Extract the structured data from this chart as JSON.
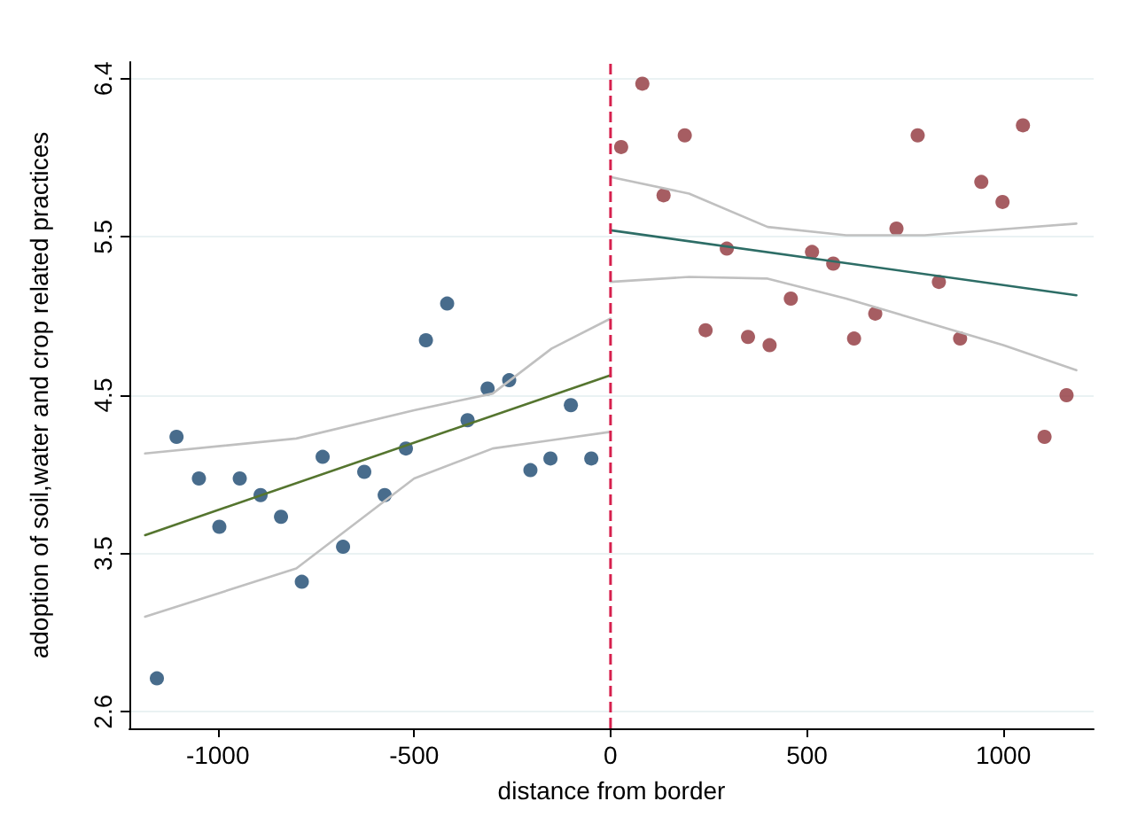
{
  "chart_data": {
    "type": "scatter",
    "xlabel": "distance from border",
    "ylabel": "adoption of soil,water and crop related practices",
    "xlim": [
      -1225,
      1230
    ],
    "xticks": [
      -1000,
      -500,
      0,
      500,
      1000
    ],
    "ylim": [
      2.5,
      6.5
    ],
    "yticks": [
      2.6,
      {
        "value": 3.55,
        "label": "3.5"
      },
      4.5,
      {
        "value": 5.45,
        "label": "5.5"
      },
      6.4
    ],
    "grid": "y",
    "ref_lines": [
      {
        "axis": "x",
        "value": 0,
        "color": "#d6204d",
        "line_style": "dashed"
      }
    ],
    "series": [
      {
        "marker": "circle",
        "color": "#1a476f",
        "x": [
          -1155,
          -1105,
          -1048,
          -996,
          -944,
          -891,
          -839,
          -786,
          -733,
          -681,
          -627,
          -575,
          -521,
          -470,
          -416,
          -364,
          -313,
          -258,
          -204,
          -153,
          -101,
          -49
        ],
        "values": [
          2.8,
          4.25,
          4.0,
          3.71,
          4.0,
          3.9,
          3.77,
          3.38,
          4.13,
          3.59,
          4.04,
          3.9,
          4.18,
          4.83,
          5.05,
          4.35,
          4.54,
          4.59,
          4.05,
          4.12,
          4.44,
          4.12
        ]
      },
      {
        "marker": "circle",
        "color": "#90353b",
        "x": [
          27,
          81,
          135,
          189,
          242,
          296,
          350,
          405,
          459,
          513,
          567,
          620,
          674,
          728,
          782,
          836,
          890,
          944,
          998,
          1050,
          1105,
          1161
        ],
        "values": [
          5.99,
          6.37,
          5.7,
          6.06,
          4.89,
          5.38,
          4.85,
          4.8,
          5.08,
          5.36,
          5.29,
          4.84,
          4.99,
          5.5,
          6.06,
          5.18,
          4.84,
          5.78,
          5.66,
          6.12,
          4.25,
          4.5
        ]
      },
      {
        "type": "line",
        "marker": "none",
        "line_style": "solid",
        "color": "#55752f",
        "x": [
          -1185,
          0
        ],
        "values": [
          3.66,
          4.62
        ]
      },
      {
        "type": "line",
        "marker": "none",
        "line_style": "solid",
        "color": "#c0c0c0",
        "x": [
          -1185,
          -800,
          -500,
          -300,
          -150,
          0
        ],
        "values": [
          4.15,
          4.24,
          4.41,
          4.51,
          4.78,
          4.96
        ]
      },
      {
        "type": "line",
        "marker": "none",
        "line_style": "solid",
        "color": "#c0c0c0",
        "x": [
          -1185,
          -800,
          -500,
          -300,
          -150,
          0
        ],
        "values": [
          3.17,
          3.46,
          4.0,
          4.18,
          4.23,
          4.28
        ]
      },
      {
        "type": "line",
        "marker": "none",
        "line_style": "solid",
        "color": "#2d6d66",
        "x": [
          0,
          1186
        ],
        "values": [
          5.49,
          5.1
        ]
      },
      {
        "type": "line",
        "marker": "none",
        "line_style": "solid",
        "color": "#c0c0c0",
        "x": [
          0,
          200,
          400,
          600,
          800,
          1186
        ],
        "values": [
          5.81,
          5.71,
          5.51,
          5.46,
          5.46,
          5.53
        ]
      },
      {
        "type": "line",
        "marker": "none",
        "line_style": "solid",
        "color": "#c0c0c0",
        "x": [
          0,
          200,
          400,
          600,
          800,
          1000,
          1186
        ],
        "values": [
          5.18,
          5.21,
          5.2,
          5.08,
          4.94,
          4.8,
          4.65
        ]
      }
    ]
  }
}
